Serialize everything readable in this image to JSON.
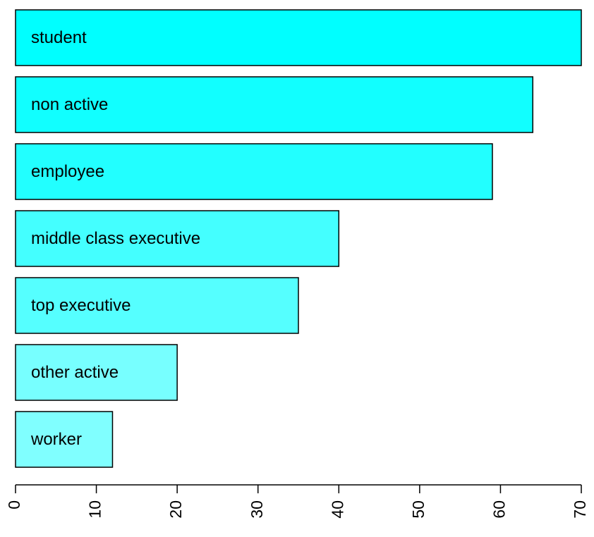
{
  "chart_data": {
    "type": "barh",
    "categories": [
      "student",
      "non active",
      "employee",
      "middle class executive",
      "top executive",
      "other active",
      "worker"
    ],
    "values": [
      70,
      64,
      59,
      40,
      35,
      20,
      12
    ],
    "colors": [
      "#00ffff",
      "#11ffff",
      "#22ffff",
      "#44ffff",
      "#55ffff",
      "#77ffff",
      "#80ffff"
    ],
    "xlim": [
      0,
      70
    ],
    "xticks": [
      0,
      10,
      20,
      30,
      40,
      50,
      60,
      70
    ]
  }
}
